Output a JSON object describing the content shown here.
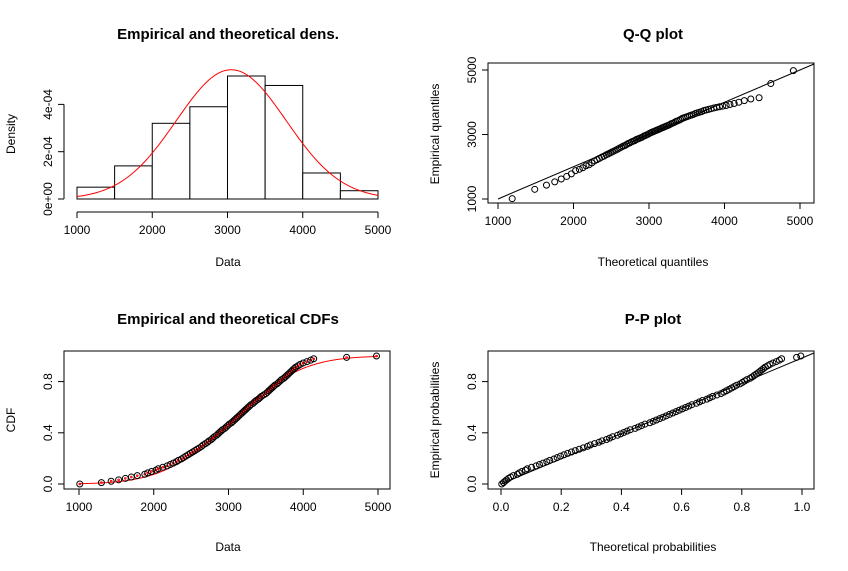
{
  "chart_data": [
    {
      "id": "density",
      "type": "bar",
      "title": "Empirical and theoretical dens.",
      "xlabel": "Data",
      "ylabel": "Density",
      "xlim": [
        1000,
        5000
      ],
      "ylim": [
        0,
        0.00052
      ],
      "x_ticks": [
        1000,
        2000,
        3000,
        4000,
        5000
      ],
      "y_ticks": [
        0,
        0.0002,
        0.0004
      ],
      "y_tick_labels": [
        "0e+00",
        "2e-04",
        "4e-04"
      ],
      "bins": [
        {
          "from": 1000,
          "to": 1500,
          "density": 5e-05
        },
        {
          "from": 1500,
          "to": 2000,
          "density": 0.00014
        },
        {
          "from": 2000,
          "to": 2500,
          "density": 0.00032
        },
        {
          "from": 2500,
          "to": 3000,
          "density": 0.00039
        },
        {
          "from": 3000,
          "to": 3500,
          "density": 0.00052
        },
        {
          "from": 3500,
          "to": 4000,
          "density": 0.00048
        },
        {
          "from": 4000,
          "to": 4500,
          "density": 0.00011
        },
        {
          "from": 4500,
          "to": 5000,
          "density": 3.5e-05
        }
      ],
      "theoretical": {
        "distribution": "normal",
        "mean": 3050,
        "sd": 730,
        "color": "#ff0000"
      }
    },
    {
      "id": "qq",
      "type": "scatter",
      "title": "Q-Q plot",
      "xlabel": "Theoretical quantiles",
      "ylabel": "Empirical quantiles",
      "xlim": [
        1000,
        5000
      ],
      "ylim": [
        1000,
        5000
      ],
      "x_ticks": [
        1000,
        2000,
        3000,
        4000,
        5000
      ],
      "y_ticks": [
        1000,
        3000,
        5000
      ],
      "reference_line": "y = x"
    },
    {
      "id": "cdf",
      "type": "scatter",
      "title": "Empirical and theoretical CDFs",
      "xlabel": "Data",
      "ylabel": "CDF",
      "xlim": [
        1000,
        5000
      ],
      "ylim": [
        0,
        1
      ],
      "x_ticks": [
        1000,
        2000,
        3000,
        4000,
        5000
      ],
      "y_ticks": [
        0.0,
        0.4,
        0.8
      ],
      "y_tick_labels": [
        "0.0",
        "0.4",
        "0.8"
      ],
      "theoretical": {
        "distribution": "normal",
        "mean": 3050,
        "sd": 730,
        "color": "#ff0000"
      }
    },
    {
      "id": "pp",
      "type": "scatter",
      "title": "P-P plot",
      "xlabel": "Theoretical probabilities",
      "ylabel": "Empirical probabilities",
      "xlim": [
        0,
        1
      ],
      "ylim": [
        0,
        1
      ],
      "x_ticks": [
        0.0,
        0.2,
        0.4,
        0.6,
        0.8,
        1.0
      ],
      "x_tick_labels": [
        "0.0",
        "0.2",
        "0.4",
        "0.6",
        "0.8",
        "1.0"
      ],
      "y_ticks": [
        0.0,
        0.4,
        0.8
      ],
      "y_tick_labels": [
        "0.0",
        "0.4",
        "0.8"
      ],
      "reference_line": "y = x"
    }
  ],
  "sample_data": [
    1010,
    1300,
    1430,
    1530,
    1620,
    1700,
    1780,
    1880,
    1920,
    1970,
    2030,
    2060,
    2120,
    2180,
    2220,
    2260,
    2300,
    2330,
    2370,
    2400,
    2430,
    2460,
    2490,
    2520,
    2550,
    2580,
    2610,
    2640,
    2660,
    2690,
    2720,
    2740,
    2770,
    2790,
    2810,
    2840,
    2860,
    2880,
    2900,
    2920,
    2950,
    2970,
    2990,
    3010,
    3040,
    3060,
    3080,
    3100,
    3120,
    3140,
    3160,
    3180,
    3200,
    3220,
    3240,
    3260,
    3280,
    3300,
    3330,
    3350,
    3370,
    3400,
    3420,
    3440,
    3470,
    3500,
    3520,
    3540,
    3560,
    3580,
    3600,
    3620,
    3650,
    3670,
    3690,
    3710,
    3740,
    3760,
    3780,
    3800,
    3820,
    3840,
    3860,
    3880,
    3900,
    3930,
    3960,
    4000,
    4050,
    4100,
    4140,
    4580,
    4980
  ]
}
